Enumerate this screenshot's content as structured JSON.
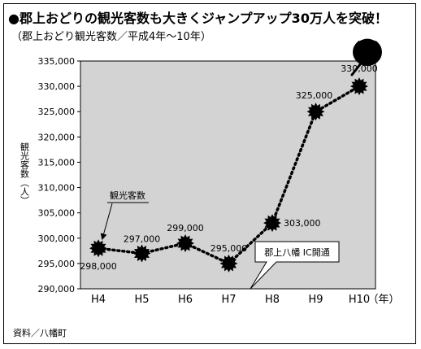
{
  "title": "●郡上おどりの観光客数も大きくジャンプアップ30万人を突破！",
  "subtitle": "（郡上おどり観光客数／平成4年〜10年）",
  "source": "資料／八幡町",
  "colors": {
    "plot_background": "#d3d3d3",
    "line": "#000000",
    "marker": "#000000"
  },
  "icons": {
    "top_right": "uchiwa-fan-icon"
  },
  "chart_data": {
    "type": "line",
    "title": "郡上おどり観光客数／平成4年〜10年",
    "categories": [
      "H4",
      "H5",
      "H6",
      "H7",
      "H8",
      "H9",
      "H10"
    ],
    "x_unit": "（年）",
    "ylabel": "観光客数（人）",
    "ylim": [
      290000,
      335000
    ],
    "yticks": [
      "290,000",
      "295,000",
      "300,000",
      "305,000",
      "310,000",
      "315,000",
      "320,000",
      "325,000",
      "330,000",
      "335,000"
    ],
    "grid": false,
    "series": [
      {
        "name": "観光客数",
        "values": [
          298000,
          297000,
          299000,
          295000,
          303000,
          325000,
          330000
        ],
        "labels": [
          "298,000",
          "297,000",
          "299,000",
          "295,000",
          "303,000",
          "325,000",
          "330,000"
        ],
        "line_style": "dotted",
        "marker": "starburst"
      }
    ],
    "annotations": [
      {
        "text": "観光客数",
        "points_to": "H4"
      },
      {
        "text": "郡上八幡 IC開通",
        "points_to": "H7-H8"
      }
    ]
  }
}
